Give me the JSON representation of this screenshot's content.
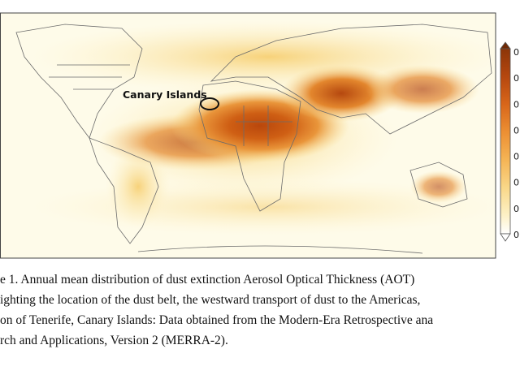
{
  "figure": {
    "map_label": "Canary Islands",
    "colorbar_labels": [
      "0",
      "0",
      "0",
      "0",
      "0",
      "0",
      "0",
      "0"
    ],
    "caption_lines": [
      "e 1.  Annual mean distribution of dust extinction Aerosol Optical Thickness (AOT)",
      "ighting the location of the dust belt, the westward transport of dust to the Americas,",
      "on of Tenerife, Canary Islands: Data obtained from the Modern-Era Retrospective ana",
      "rch and Applications, Version 2 (MERRA-2)."
    ]
  }
}
